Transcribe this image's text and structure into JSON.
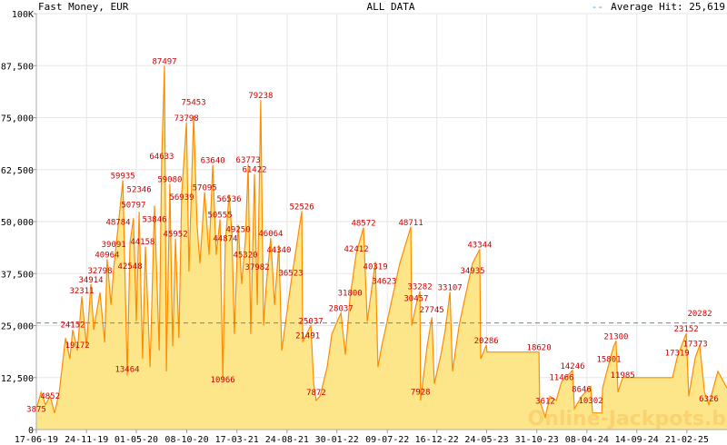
{
  "header": {
    "title": "Fast Money, EUR",
    "center": "ALL DATA",
    "legend_dash": "--",
    "average_label": "Average Hit: 25,619"
  },
  "watermark": "Online-Jackpots.biz",
  "colors": {
    "fill": "#fde68a",
    "line": "#ff8c00",
    "label": "#cc0000",
    "average": "#3399cc",
    "grid": "#e6e6e6"
  },
  "chart_data": {
    "type": "area",
    "title": "Fast Money, EUR",
    "subtitle": "ALL DATA",
    "x_unit": "days since 17-06-19",
    "xlim": [
      0,
      2204
    ],
    "ylim": [
      0,
      100000
    ],
    "grid": true,
    "average": 25619,
    "y_ticks": [
      {
        "value": 0,
        "label": "0"
      },
      {
        "value": 12500,
        "label": "12,500"
      },
      {
        "value": 25000,
        "label": "25,000"
      },
      {
        "value": 37500,
        "label": "37,500"
      },
      {
        "value": 50000,
        "label": "50,000"
      },
      {
        "value": 62500,
        "label": "62,500"
      },
      {
        "value": 75000,
        "label": "75,000"
      },
      {
        "value": 87500,
        "label": "87,500"
      },
      {
        "value": 100000,
        "label": "100K"
      }
    ],
    "x_ticks": [
      {
        "value": 0,
        "label": "17-06-19"
      },
      {
        "value": 160,
        "label": "24-11-19"
      },
      {
        "value": 319,
        "label": "01-05-20"
      },
      {
        "value": 480,
        "label": "08-10-20"
      },
      {
        "value": 640,
        "label": "17-03-21"
      },
      {
        "value": 800,
        "label": "24-08-21"
      },
      {
        "value": 959,
        "label": "30-01-22"
      },
      {
        "value": 1120,
        "label": "09-07-22"
      },
      {
        "value": 1278,
        "label": "16-12-22"
      },
      {
        "value": 1437,
        "label": "24-05-23"
      },
      {
        "value": 1597,
        "label": "31-10-23"
      },
      {
        "value": 1757,
        "label": "08-04-24"
      },
      {
        "value": 1916,
        "label": "14-09-24"
      },
      {
        "value": 2076,
        "label": "21-02-25"
      }
    ],
    "points": [
      [
        0,
        5000
      ],
      [
        15,
        9000
      ],
      [
        29,
        6000
      ],
      [
        44,
        8000
      ],
      [
        58,
        4000
      ],
      [
        73,
        9000
      ],
      [
        93,
        22000
      ],
      [
        107,
        17000
      ],
      [
        116,
        24000
      ],
      [
        131,
        19000
      ],
      [
        145,
        32000
      ],
      [
        160,
        20000
      ],
      [
        174,
        35000
      ],
      [
        183,
        24000
      ],
      [
        203,
        33000
      ],
      [
        218,
        21000
      ],
      [
        226,
        41000
      ],
      [
        238,
        30000
      ],
      [
        247,
        39000
      ],
      [
        261,
        48784
      ],
      [
        276,
        59935
      ],
      [
        290,
        13000
      ],
      [
        299,
        45000
      ],
      [
        310,
        50797
      ],
      [
        319,
        26000
      ],
      [
        328,
        52346
      ],
      [
        339,
        17000
      ],
      [
        348,
        44000
      ],
      [
        363,
        15000
      ],
      [
        377,
        53846
      ],
      [
        392,
        19000
      ],
      [
        400,
        64633
      ],
      [
        409,
        87497
      ],
      [
        415,
        14000
      ],
      [
        426,
        59080
      ],
      [
        435,
        20000
      ],
      [
        444,
        45952
      ],
      [
        455,
        22000
      ],
      [
        464,
        56939
      ],
      [
        479,
        73798
      ],
      [
        487,
        38000
      ],
      [
        502,
        75453
      ],
      [
        513,
        49000
      ],
      [
        522,
        40000
      ],
      [
        537,
        57095
      ],
      [
        551,
        42000
      ],
      [
        563,
        63640
      ],
      [
        574,
        42000
      ],
      [
        586,
        50555
      ],
      [
        595,
        12000
      ],
      [
        603,
        44874
      ],
      [
        615,
        56536
      ],
      [
        624,
        47000
      ],
      [
        632,
        23000
      ],
      [
        644,
        49250
      ],
      [
        655,
        35000
      ],
      [
        667,
        45320
      ],
      [
        676,
        63773
      ],
      [
        684,
        23000
      ],
      [
        696,
        61422
      ],
      [
        705,
        30000
      ],
      [
        716,
        79238
      ],
      [
        725,
        25000
      ],
      [
        734,
        35000
      ],
      [
        748,
        46064
      ],
      [
        760,
        30000
      ],
      [
        774,
        44340
      ],
      [
        783,
        19000
      ],
      [
        812,
        35000
      ],
      [
        847,
        52526
      ],
      [
        850,
        21000
      ],
      [
        876,
        25037
      ],
      [
        885,
        11000
      ],
      [
        893,
        7000
      ],
      [
        905,
        8000
      ],
      [
        928,
        15000
      ],
      [
        943,
        23000
      ],
      [
        972,
        28037
      ],
      [
        986,
        18000
      ],
      [
        1001,
        31800
      ],
      [
        1021,
        42412
      ],
      [
        1044,
        48572
      ],
      [
        1056,
        26000
      ],
      [
        1082,
        40319
      ],
      [
        1090,
        15000
      ],
      [
        1102,
        20000
      ],
      [
        1131,
        30000
      ],
      [
        1160,
        40000
      ],
      [
        1195,
        48711
      ],
      [
        1198,
        25000
      ],
      [
        1212,
        30000
      ],
      [
        1224,
        33282
      ],
      [
        1226,
        7000
      ],
      [
        1247,
        20000
      ],
      [
        1262,
        27000
      ],
      [
        1270,
        11000
      ],
      [
        1291,
        18000
      ],
      [
        1305,
        24000
      ],
      [
        1320,
        33107
      ],
      [
        1328,
        14000
      ],
      [
        1349,
        25000
      ],
      [
        1363,
        30000
      ],
      [
        1392,
        40000
      ],
      [
        1415,
        43344
      ],
      [
        1418,
        17000
      ],
      [
        1436,
        20286
      ],
      [
        1438,
        18620
      ],
      [
        1604,
        18620
      ],
      [
        1606,
        7000
      ],
      [
        1624,
        3000
      ],
      [
        1639,
        8000
      ],
      [
        1659,
        7000
      ],
      [
        1676,
        11466
      ],
      [
        1711,
        14246
      ],
      [
        1717,
        5000
      ],
      [
        1740,
        8000
      ],
      [
        1769,
        10302
      ],
      [
        1775,
        4000
      ],
      [
        1804,
        4000
      ],
      [
        1807,
        10000
      ],
      [
        1827,
        15801
      ],
      [
        1842,
        20000
      ],
      [
        1850,
        21300
      ],
      [
        1856,
        9000
      ],
      [
        1871,
        12500
      ],
      [
        2030,
        12500
      ],
      [
        2045,
        17319
      ],
      [
        2074,
        23152
      ],
      [
        2082,
        8000
      ],
      [
        2103,
        17373
      ],
      [
        2117,
        20282
      ],
      [
        2132,
        9000
      ],
      [
        2146,
        6000
      ],
      [
        2175,
        14000
      ],
      [
        2204,
        10000
      ]
    ],
    "labels": [
      [
        0,
        "3875"
      ],
      [
        44,
        "4852"
      ],
      [
        131,
        "19172"
      ],
      [
        116,
        "24152"
      ],
      [
        145,
        "32311"
      ],
      [
        174,
        "34914"
      ],
      [
        203,
        "32798"
      ],
      [
        226,
        "40964"
      ],
      [
        247,
        "39091"
      ],
      [
        261,
        "48784"
      ],
      [
        276,
        "59935"
      ],
      [
        290,
        "13464"
      ],
      [
        299,
        "42548"
      ],
      [
        310,
        "50797"
      ],
      [
        328,
        "52346"
      ],
      [
        339,
        "44158"
      ],
      [
        377,
        "53846"
      ],
      [
        400,
        "64633"
      ],
      [
        409,
        "87497"
      ],
      [
        426,
        "59080"
      ],
      [
        444,
        "45952"
      ],
      [
        464,
        "56939"
      ],
      [
        479,
        "73798"
      ],
      [
        502,
        "75453"
      ],
      [
        537,
        "57095"
      ],
      [
        563,
        "63640"
      ],
      [
        586,
        "50555"
      ],
      [
        595,
        "10966"
      ],
      [
        603,
        "44874"
      ],
      [
        615,
        "56536"
      ],
      [
        644,
        "49250"
      ],
      [
        667,
        "45320"
      ],
      [
        676,
        "63773"
      ],
      [
        696,
        "61422"
      ],
      [
        716,
        "79238"
      ],
      [
        705,
        "37982"
      ],
      [
        748,
        "46064"
      ],
      [
        774,
        "44340"
      ],
      [
        812,
        "36523"
      ],
      [
        847,
        "52526"
      ],
      [
        876,
        "25037"
      ],
      [
        866,
        "21491"
      ],
      [
        893,
        "7872"
      ],
      [
        972,
        "28037"
      ],
      [
        1001,
        "31800"
      ],
      [
        1021,
        "42412"
      ],
      [
        1044,
        "48572"
      ],
      [
        1082,
        "40319"
      ],
      [
        1110,
        "34623"
      ],
      [
        1195,
        "48711"
      ],
      [
        1224,
        "33282"
      ],
      [
        1212,
        "30457"
      ],
      [
        1226,
        "7928"
      ],
      [
        1262,
        "27745"
      ],
      [
        1320,
        "33107"
      ],
      [
        1392,
        "34935"
      ],
      [
        1415,
        "43344"
      ],
      [
        1436,
        "20286"
      ],
      [
        1604,
        "18620"
      ],
      [
        1624,
        "3612"
      ],
      [
        1676,
        "11466"
      ],
      [
        1711,
        "14246"
      ],
      [
        1740,
        "8646"
      ],
      [
        1769,
        "10302"
      ],
      [
        1827,
        "15801"
      ],
      [
        1850,
        "21300"
      ],
      [
        1871,
        "11985"
      ],
      [
        2045,
        "17319"
      ],
      [
        2074,
        "23152"
      ],
      [
        2103,
        "17373"
      ],
      [
        2117,
        "20282"
      ],
      [
        2146,
        "6326"
      ]
    ]
  }
}
